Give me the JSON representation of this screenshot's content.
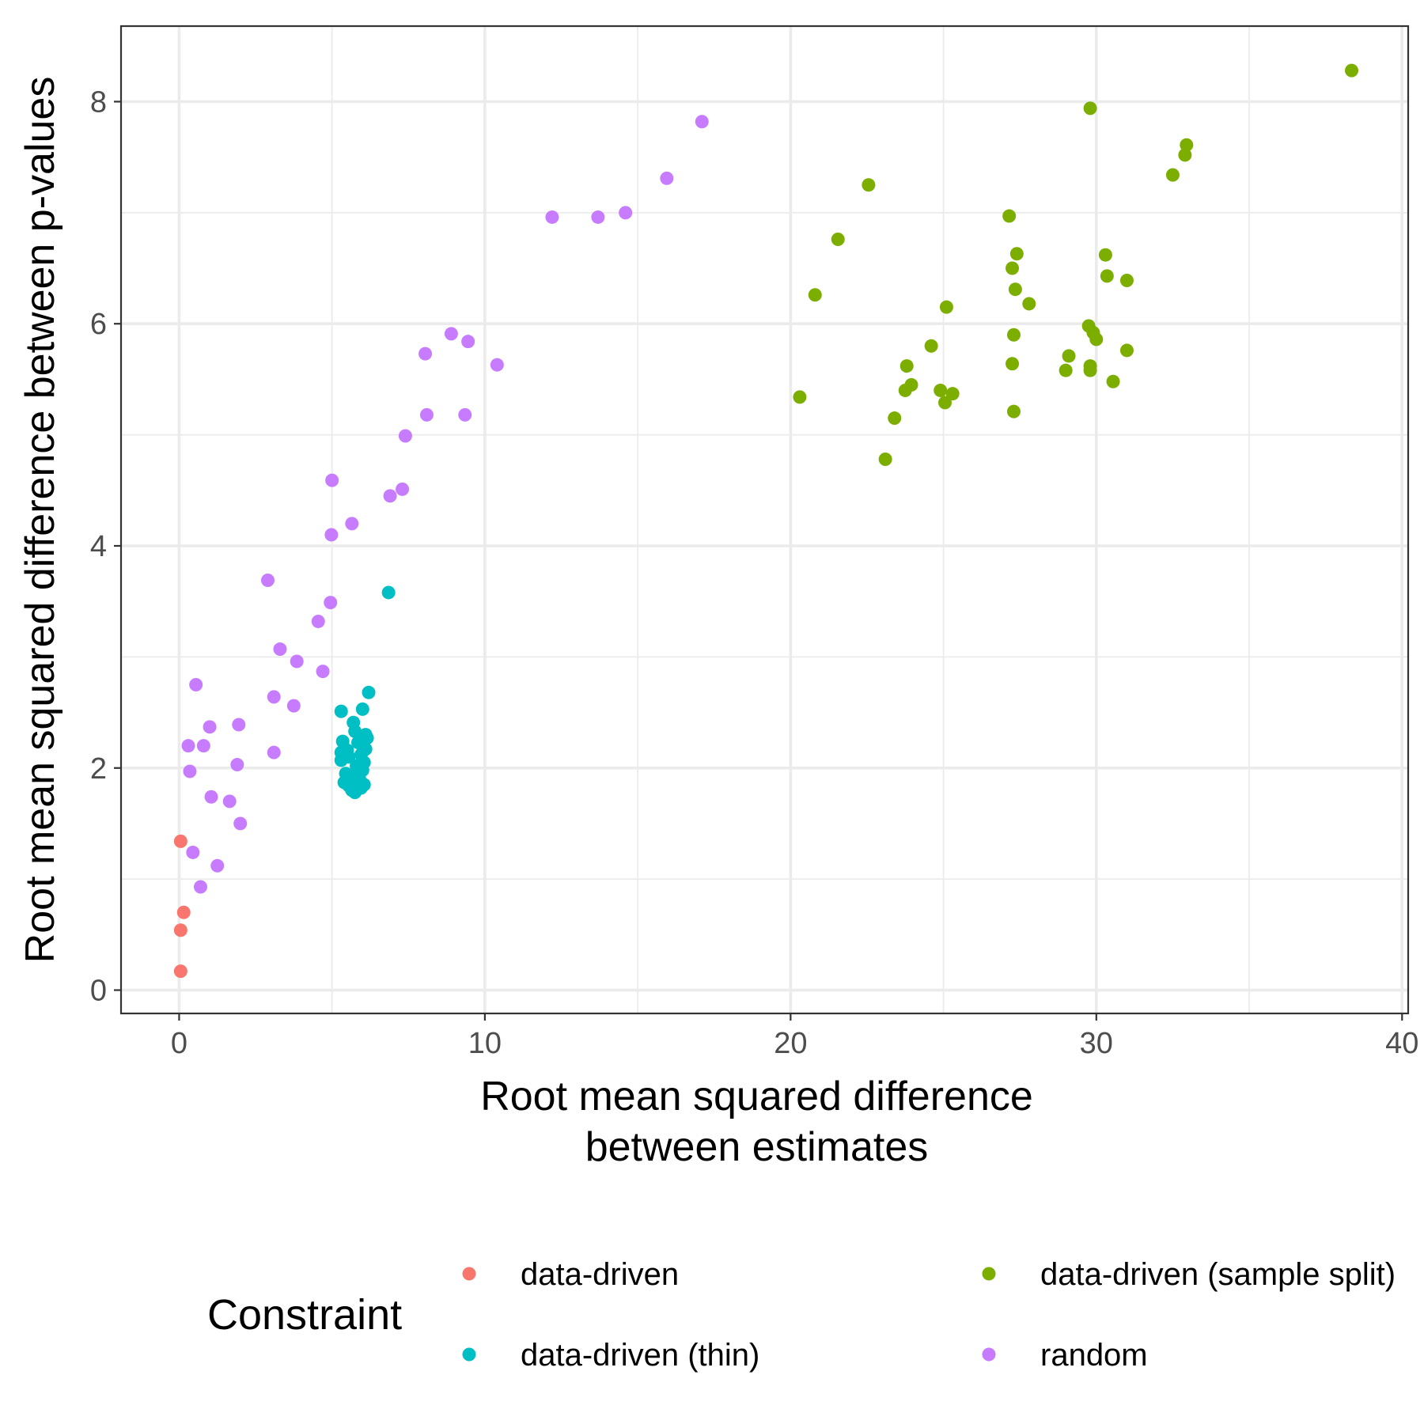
{
  "chart_data": {
    "type": "scatter",
    "xlabel": [
      "Root mean squared difference",
      "between estimates"
    ],
    "ylabel": "Root mean squared difference between p-values",
    "xlim": [
      -1.9,
      40.2
    ],
    "ylim": [
      -0.21,
      8.68
    ],
    "xticks": [
      0,
      10,
      20,
      30,
      40
    ],
    "yticks": [
      0,
      2,
      4,
      6,
      8
    ],
    "grid": true,
    "legend": {
      "title": "Constraint",
      "placement": "bottom"
    },
    "series": [
      {
        "name": "data-driven",
        "color": "#F8766D",
        "points": [
          [
            0.05,
            1.34
          ],
          [
            0.15,
            0.7
          ],
          [
            0.05,
            0.54
          ],
          [
            0.05,
            0.17
          ]
        ]
      },
      {
        "name": "data-driven (sample split)",
        "color": "#7CAE00",
        "points": [
          [
            38.35,
            8.28
          ],
          [
            29.8,
            7.94
          ],
          [
            32.95,
            7.61
          ],
          [
            32.9,
            7.52
          ],
          [
            32.5,
            7.34
          ],
          [
            22.55,
            7.25
          ],
          [
            27.15,
            6.97
          ],
          [
            21.55,
            6.76
          ],
          [
            27.4,
            6.63
          ],
          [
            30.3,
            6.62
          ],
          [
            27.25,
            6.5
          ],
          [
            30.35,
            6.43
          ],
          [
            31.0,
            6.39
          ],
          [
            27.35,
            6.31
          ],
          [
            20.8,
            6.26
          ],
          [
            27.8,
            6.18
          ],
          [
            25.1,
            6.15
          ],
          [
            29.75,
            5.98
          ],
          [
            29.9,
            5.92
          ],
          [
            27.3,
            5.9
          ],
          [
            30.0,
            5.86
          ],
          [
            24.6,
            5.8
          ],
          [
            31.0,
            5.76
          ],
          [
            29.1,
            5.71
          ],
          [
            27.25,
            5.64
          ],
          [
            23.8,
            5.62
          ],
          [
            29.8,
            5.62
          ],
          [
            29.0,
            5.58
          ],
          [
            29.8,
            5.58
          ],
          [
            30.55,
            5.48
          ],
          [
            23.95,
            5.45
          ],
          [
            23.75,
            5.4
          ],
          [
            24.9,
            5.4
          ],
          [
            25.3,
            5.37
          ],
          [
            20.3,
            5.34
          ],
          [
            25.05,
            5.29
          ],
          [
            27.3,
            5.21
          ],
          [
            23.4,
            5.15
          ],
          [
            23.1,
            4.78
          ]
        ]
      },
      {
        "name": "data-driven (thin)",
        "color": "#00BFC4",
        "points": [
          [
            6.85,
            3.58
          ],
          [
            6.2,
            2.68
          ],
          [
            6.0,
            2.53
          ],
          [
            5.3,
            2.51
          ],
          [
            5.7,
            2.41
          ],
          [
            5.75,
            2.33
          ],
          [
            6.1,
            2.3
          ],
          [
            6.15,
            2.27
          ],
          [
            5.35,
            2.24
          ],
          [
            5.85,
            2.23
          ],
          [
            6.1,
            2.17
          ],
          [
            5.5,
            2.16
          ],
          [
            5.3,
            2.14
          ],
          [
            5.95,
            2.12
          ],
          [
            5.55,
            2.1
          ],
          [
            5.3,
            2.07
          ],
          [
            6.05,
            2.05
          ],
          [
            5.8,
            2.02
          ],
          [
            6.0,
            1.98
          ],
          [
            5.45,
            1.95
          ],
          [
            5.7,
            1.92
          ],
          [
            5.9,
            1.9
          ],
          [
            5.4,
            1.87
          ],
          [
            6.05,
            1.85
          ],
          [
            5.55,
            1.84
          ],
          [
            5.95,
            1.82
          ],
          [
            5.65,
            1.8
          ],
          [
            5.75,
            1.78
          ]
        ]
      },
      {
        "name": "random",
        "color": "#C77CFF",
        "points": [
          [
            17.1,
            7.82
          ],
          [
            15.95,
            7.31
          ],
          [
            14.6,
            7.0
          ],
          [
            12.2,
            6.96
          ],
          [
            13.7,
            6.96
          ],
          [
            8.9,
            5.91
          ],
          [
            9.45,
            5.84
          ],
          [
            8.05,
            5.73
          ],
          [
            10.4,
            5.63
          ],
          [
            8.1,
            5.18
          ],
          [
            9.35,
            5.18
          ],
          [
            7.4,
            4.99
          ],
          [
            5.0,
            4.59
          ],
          [
            7.3,
            4.51
          ],
          [
            6.9,
            4.45
          ],
          [
            5.65,
            4.2
          ],
          [
            4.98,
            4.1
          ],
          [
            2.9,
            3.69
          ],
          [
            4.95,
            3.49
          ],
          [
            4.55,
            3.32
          ],
          [
            3.3,
            3.07
          ],
          [
            3.85,
            2.96
          ],
          [
            4.7,
            2.87
          ],
          [
            0.55,
            2.75
          ],
          [
            3.1,
            2.64
          ],
          [
            3.75,
            2.56
          ],
          [
            1.95,
            2.39
          ],
          [
            1.0,
            2.37
          ],
          [
            0.3,
            2.2
          ],
          [
            0.8,
            2.2
          ],
          [
            3.1,
            2.14
          ],
          [
            1.9,
            2.03
          ],
          [
            0.35,
            1.97
          ],
          [
            1.05,
            1.74
          ],
          [
            1.65,
            1.7
          ],
          [
            2.0,
            1.5
          ],
          [
            0.45,
            1.24
          ],
          [
            1.25,
            1.12
          ],
          [
            0.7,
            0.93
          ]
        ]
      }
    ]
  }
}
